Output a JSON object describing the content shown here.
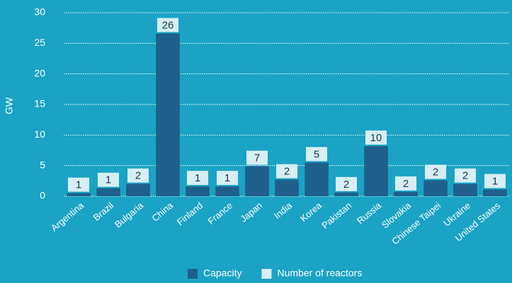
{
  "chart_data": {
    "type": "bar",
    "categories": [
      "Argentina",
      "Brazil",
      "Bulgaria",
      "China",
      "Finland",
      "France",
      "Japan",
      "India",
      "Korea",
      "Pakistan",
      "Russia",
      "Slovakia",
      "Chinese Taipei",
      "Ukraine",
      "United States"
    ],
    "series": [
      {
        "name": "Capacity",
        "color": "#1f5f8b",
        "values": [
          0.5,
          1.3,
          2,
          26.6,
          1.6,
          1.6,
          4.9,
          2.7,
          5.5,
          0.6,
          8.2,
          0.7,
          2.6,
          2,
          1.1
        ]
      },
      {
        "name": "Number of reactors",
        "color": "#d6eef4",
        "values": [
          1,
          1,
          2,
          26,
          1,
          1,
          7,
          2,
          5,
          2,
          10,
          2,
          2,
          2,
          1
        ]
      }
    ],
    "y_label": "GW",
    "ylim": [
      0,
      30
    ],
    "yticks": [
      0,
      5,
      10,
      15,
      20,
      25,
      30
    ],
    "grid": true,
    "legend": "bottom"
  }
}
